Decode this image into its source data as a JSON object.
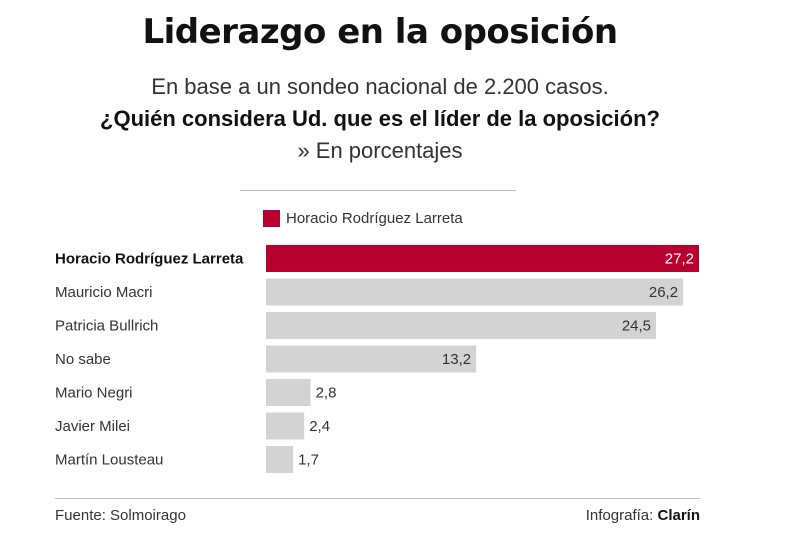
{
  "header": {
    "title": "Liderazgo en la oposición",
    "subtitle1": "En base a un sondeo nacional de 2.200 casos.",
    "subtitle2": "¿Quién considera Ud. que es el líder de la oposición?",
    "subtitle3": "» En porcentajes"
  },
  "colors": {
    "highlight": "#b8002e",
    "bar": "#d3d3d3"
  },
  "chart_data": {
    "type": "bar",
    "orientation": "horizontal",
    "legend": [
      {
        "name": "Horacio Rodríguez Larreta",
        "color": "#b8002e"
      }
    ],
    "legend_placement": "top",
    "categories": [
      "Horacio Rodríguez Larreta",
      "Mauricio Macri",
      "Patricia Bullrich",
      "No sabe",
      "Mario Negri",
      "Javier Milei",
      "Martín Lousteau"
    ],
    "values": [
      27.2,
      26.2,
      24.5,
      13.2,
      2.8,
      2.4,
      1.7
    ],
    "value_labels": [
      "27,2",
      "26,2",
      "24,5",
      "13,2",
      "2,8",
      "2,4",
      "1,7"
    ],
    "highlight_index": 0,
    "xlim": [
      0,
      27.2
    ],
    "grid": false
  },
  "footer": {
    "source": "Fuente: Solmoirago",
    "credit_prefix": "Infografía: ",
    "credit_brand": "Clarín"
  }
}
